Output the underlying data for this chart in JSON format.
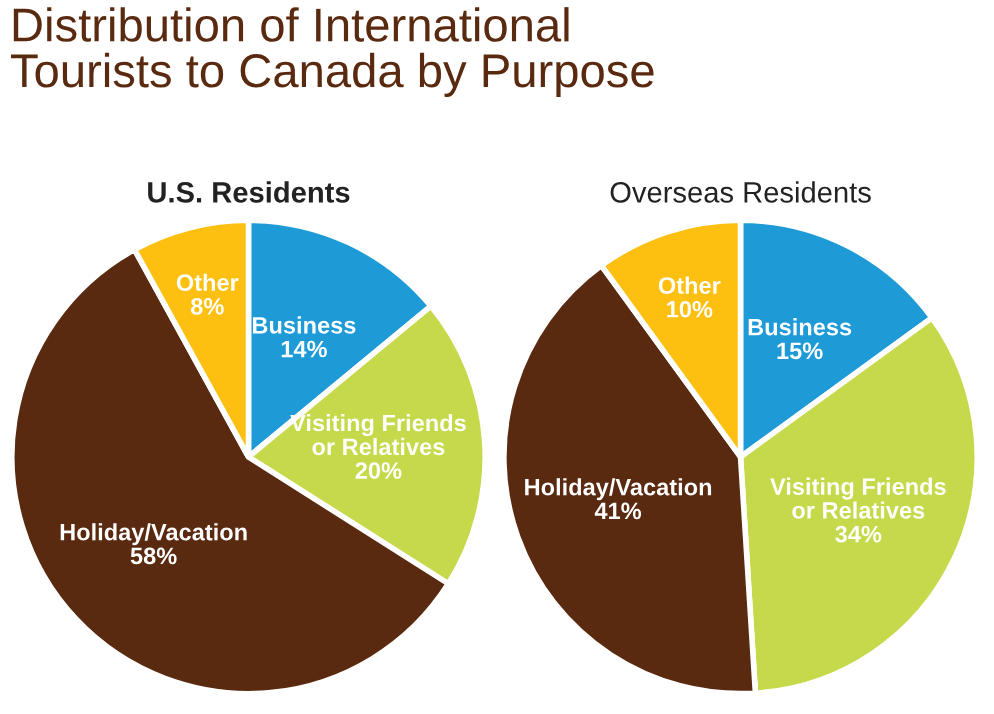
{
  "chart_data": [
    {
      "type": "pie",
      "title": "U.S. Residents",
      "annotations": [
        "Distribution of International\nTourists to Canada by Purpose"
      ],
      "categories": [
        "Business",
        "Visiting Friends\nor Relatives",
        "Holiday/Vacation",
        "Other"
      ],
      "values": [
        14,
        20,
        58,
        8
      ],
      "value_labels": [
        "14%",
        "20%",
        "58%",
        "8%"
      ],
      "colors": [
        "#1e9bd7",
        "#c5d94a",
        "#5a2a10",
        "#fdc010"
      ]
    },
    {
      "type": "pie",
      "title": "Overseas Residents",
      "categories": [
        "Business",
        "Visiting Friends\nor Relatives",
        "Holiday/Vacation",
        "Other"
      ],
      "values": [
        15,
        34,
        41,
        10
      ],
      "value_labels": [
        "15%",
        "34%",
        "41%",
        "10%"
      ],
      "colors": [
        "#1e9bd7",
        "#c5d94a",
        "#5a2a10",
        "#fdc010"
      ]
    }
  ]
}
